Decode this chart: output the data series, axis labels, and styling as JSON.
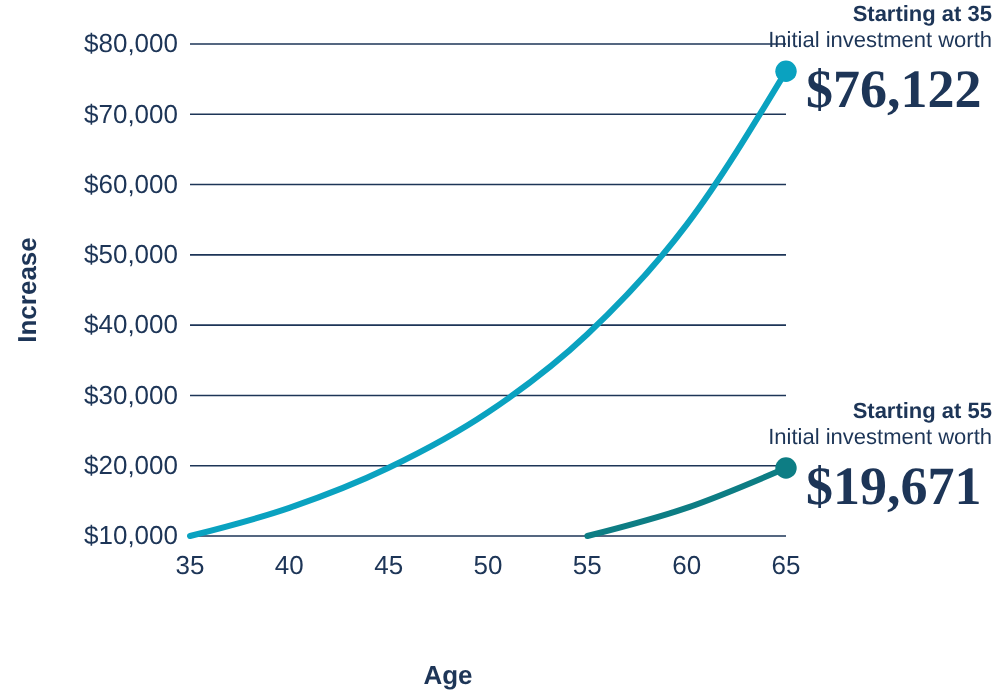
{
  "chart_data": {
    "type": "line",
    "xlabel": "Age",
    "ylabel": "Increase",
    "xlim": [
      35,
      65
    ],
    "xticks": [
      35,
      40,
      45,
      50,
      55,
      60,
      65
    ],
    "ylim": [
      10000,
      80000
    ],
    "yticks": [
      {
        "value": 10000,
        "label": "$10,000"
      },
      {
        "value": 20000,
        "label": "$20,000"
      },
      {
        "value": 30000,
        "label": "$30,000"
      },
      {
        "value": 40000,
        "label": "$40,000"
      },
      {
        "value": 50000,
        "label": "$50,000"
      },
      {
        "value": 60000,
        "label": "$60,000"
      },
      {
        "value": 70000,
        "label": "$70,000"
      },
      {
        "value": 80000,
        "label": "$80,000"
      }
    ],
    "grid": "y",
    "line_style": "solid",
    "series": [
      {
        "color": "#0aa2c0",
        "x": [
          35,
          40,
          45,
          50,
          55,
          60,
          65
        ],
        "values": [
          10000,
          14000,
          19700,
          27600,
          38700,
          54300,
          76122
        ]
      },
      {
        "color": "#0d7d84",
        "x": [
          55,
          60,
          65
        ],
        "values": [
          10000,
          14000,
          19671
        ]
      },
      {
        "type": "scatter",
        "marker": "circle",
        "color": "#0aa2c0",
        "x": [
          65
        ],
        "values": [
          76122
        ]
      },
      {
        "type": "scatter",
        "marker": "circle",
        "color": "#0d7d84",
        "x": [
          65
        ],
        "values": [
          19671
        ]
      }
    ],
    "annotations": [
      "Starting at 35",
      "Initial investment worth",
      {
        "text": "$76,122",
        "x": 65,
        "y": 76122
      },
      "Starting at 55",
      "Initial investment worth",
      {
        "text": "$19,671",
        "x": 65,
        "y": 19671
      }
    ]
  }
}
